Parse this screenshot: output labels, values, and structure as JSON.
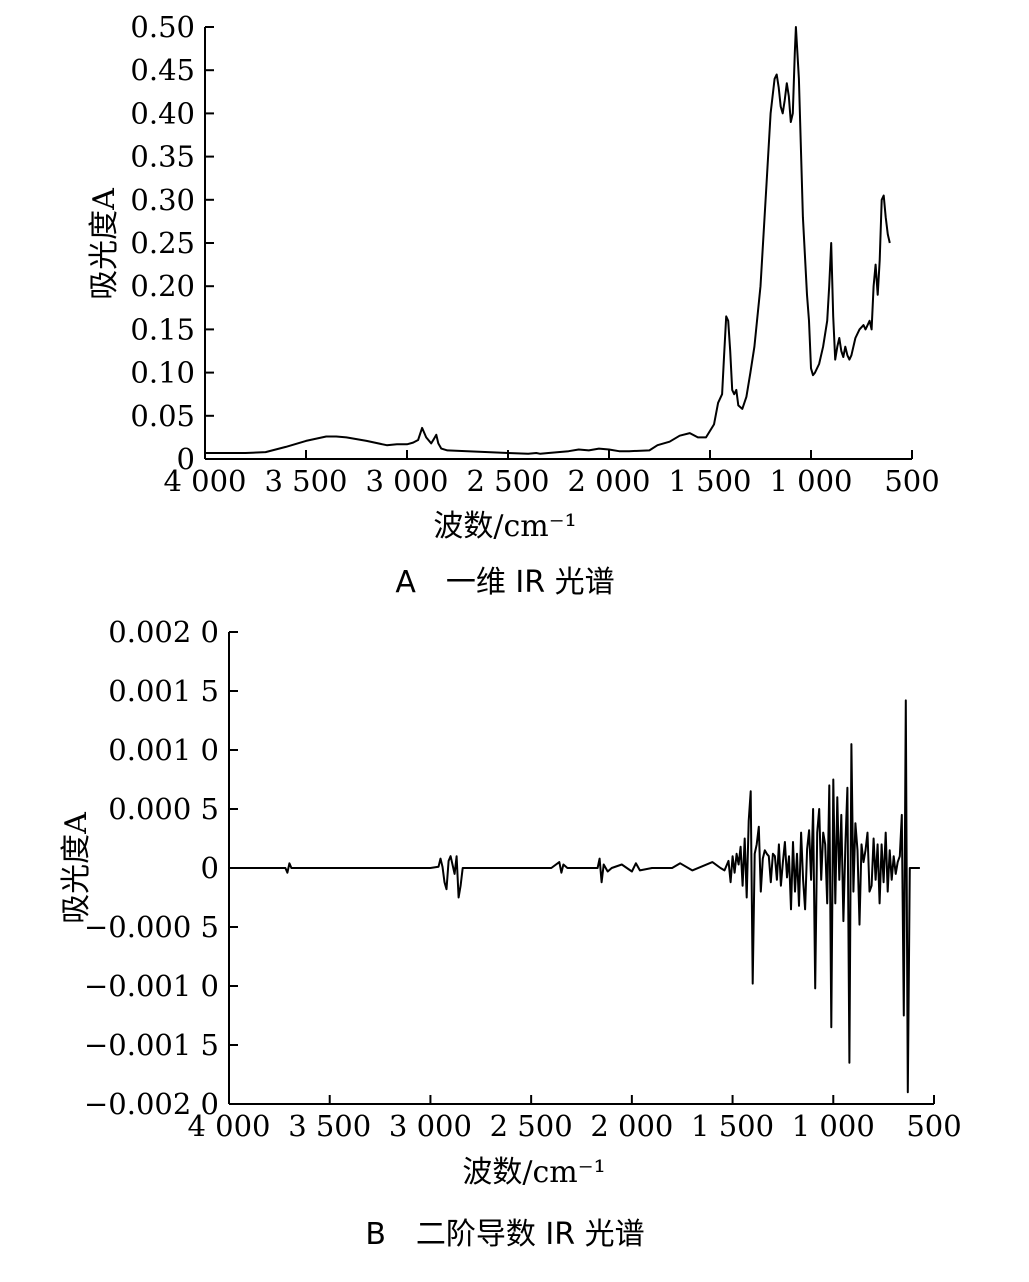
{
  "chart_data": [
    {
      "type": "line",
      "caption": "A　一维 IR 光谱",
      "xlabel": "波数/cm⁻¹",
      "ylabel": "吸光度A",
      "xlim": [
        4000,
        500
      ],
      "ylim": [
        0,
        0.5
      ],
      "xticks": [
        4000,
        3500,
        3000,
        2500,
        2000,
        1500,
        1000,
        500
      ],
      "xtick_labels": [
        "4 000",
        "3 500",
        "3 000",
        "2 500",
        "2 000",
        "1 500",
        "1 000",
        "500"
      ],
      "yticks": [
        0,
        0.05,
        0.1,
        0.15,
        0.2,
        0.25,
        0.3,
        0.35,
        0.4,
        0.45,
        0.5
      ],
      "ytick_labels": [
        "0",
        "0.05",
        "0.10",
        "0.15",
        "0.20",
        "0.25",
        "0.30",
        "0.35",
        "0.40",
        "0.45",
        "0.50"
      ],
      "series": [
        {
          "x": [
            4000,
            3900,
            3800,
            3700,
            3600,
            3500,
            3400,
            3350,
            3300,
            3200,
            3100,
            3050,
            3000,
            2970,
            2945,
            2925,
            2905,
            2880,
            2865,
            2855,
            2845,
            2830,
            2800,
            2700,
            2600,
            2500,
            2400,
            2360,
            2340,
            2300,
            2200,
            2150,
            2100,
            2050,
            2000,
            1950,
            1900,
            1800,
            1760,
            1700,
            1650,
            1600,
            1560,
            1520,
            1480,
            1460,
            1440,
            1430,
            1420,
            1410,
            1400,
            1390,
            1380,
            1370,
            1360,
            1340,
            1320,
            1300,
            1280,
            1250,
            1220,
            1200,
            1180,
            1170,
            1160,
            1150,
            1140,
            1130,
            1120,
            1110,
            1100,
            1090,
            1080,
            1075,
            1060,
            1040,
            1020,
            1010,
            1000,
            990,
            980,
            960,
            940,
            920,
            910,
            900,
            890,
            880,
            870,
            860,
            850,
            840,
            830,
            820,
            810,
            800,
            780,
            760,
            740,
            730,
            720,
            710,
            700,
            690,
            680,
            670,
            660,
            650,
            640,
            630,
            620,
            610
          ],
          "y": [
            0.007,
            0.007,
            0.007,
            0.008,
            0.014,
            0.021,
            0.026,
            0.026,
            0.025,
            0.021,
            0.016,
            0.017,
            0.017,
            0.019,
            0.022,
            0.036,
            0.025,
            0.018,
            0.024,
            0.028,
            0.018,
            0.012,
            0.01,
            0.009,
            0.008,
            0.007,
            0.006,
            0.007,
            0.006,
            0.007,
            0.009,
            0.011,
            0.01,
            0.012,
            0.011,
            0.009,
            0.009,
            0.01,
            0.016,
            0.02,
            0.027,
            0.03,
            0.025,
            0.025,
            0.04,
            0.065,
            0.075,
            0.12,
            0.165,
            0.16,
            0.125,
            0.08,
            0.075,
            0.08,
            0.062,
            0.058,
            0.072,
            0.1,
            0.13,
            0.2,
            0.32,
            0.4,
            0.44,
            0.445,
            0.43,
            0.408,
            0.4,
            0.415,
            0.435,
            0.42,
            0.39,
            0.4,
            0.47,
            0.5,
            0.44,
            0.28,
            0.19,
            0.16,
            0.105,
            0.097,
            0.1,
            0.11,
            0.13,
            0.16,
            0.2,
            0.25,
            0.165,
            0.115,
            0.13,
            0.14,
            0.125,
            0.118,
            0.13,
            0.12,
            0.115,
            0.12,
            0.14,
            0.15,
            0.155,
            0.15,
            0.155,
            0.16,
            0.15,
            0.2,
            0.225,
            0.19,
            0.23,
            0.3,
            0.305,
            0.28,
            0.26,
            0.25
          ]
        }
      ]
    },
    {
      "type": "line",
      "caption": "B　二阶导数 IR 光谱",
      "xlabel": "波数/cm⁻¹",
      "ylabel": "吸光度A",
      "xlim": [
        4000,
        500
      ],
      "ylim": [
        -0.002,
        0.002
      ],
      "xticks": [
        4000,
        3500,
        3000,
        2500,
        2000,
        1500,
        1000,
        500
      ],
      "xtick_labels": [
        "4 000",
        "3 500",
        "3 000",
        "2 500",
        "2 000",
        "1 500",
        "1 000",
        "500"
      ],
      "yticks": [
        0.002,
        0.0015,
        0.001,
        0.0005,
        0,
        -0.0005,
        -0.001,
        -0.0015,
        -0.002
      ],
      "ytick_labels": [
        "0.002 0",
        "0.001 5",
        "0.001 0",
        "0.000 5",
        "0",
        "−0.000 5",
        "−0.001 0",
        "−0.001 5",
        "−0.002 0"
      ],
      "series": [
        {
          "x": [
            4000,
            3900,
            3800,
            3720,
            3710,
            3700,
            3690,
            3600,
            3400,
            3200,
            3000,
            2960,
            2950,
            2940,
            2930,
            2920,
            2910,
            2900,
            2880,
            2870,
            2860,
            2850,
            2840,
            2800,
            2600,
            2400,
            2360,
            2350,
            2340,
            2320,
            2200,
            2170,
            2160,
            2150,
            2140,
            2120,
            2100,
            2050,
            2000,
            1980,
            1960,
            1900,
            1800,
            1760,
            1700,
            1600,
            1560,
            1540,
            1520,
            1510,
            1500,
            1490,
            1480,
            1470,
            1460,
            1450,
            1440,
            1430,
            1420,
            1410,
            1400,
            1390,
            1380,
            1370,
            1360,
            1350,
            1340,
            1330,
            1320,
            1310,
            1300,
            1290,
            1280,
            1270,
            1260,
            1250,
            1240,
            1230,
            1220,
            1210,
            1200,
            1190,
            1180,
            1170,
            1160,
            1150,
            1140,
            1130,
            1120,
            1110,
            1100,
            1090,
            1080,
            1070,
            1060,
            1050,
            1040,
            1030,
            1020,
            1010,
            1000,
            990,
            980,
            970,
            960,
            950,
            940,
            930,
            920,
            910,
            900,
            890,
            880,
            870,
            860,
            850,
            840,
            830,
            820,
            810,
            800,
            790,
            780,
            770,
            760,
            750,
            740,
            730,
            720,
            710,
            700,
            690,
            680,
            670,
            660,
            650,
            640,
            630,
            620,
            610,
            600,
            590,
            580,
            570
          ],
          "y": [
            0,
            0,
            0,
            0,
            -4e-05,
            4e-05,
            0,
            0,
            0,
            0,
            0,
            1e-05,
            8e-05,
            1e-05,
            -0.00012,
            -0.00018,
            6e-05,
            0.0001,
            -5e-05,
            0.0001,
            -0.00025,
            -0.00015,
            0,
            0,
            0,
            0,
            5e-05,
            -4e-05,
            3e-05,
            0,
            0,
            0,
            8e-05,
            -0.00012,
            3e-05,
            -3e-05,
            0,
            3e-05,
            -3e-05,
            4e-05,
            -2e-05,
            0,
            0,
            4e-05,
            -2e-05,
            5e-05,
            0,
            -2e-05,
            6e-05,
            -0.00012,
            0.0001,
            -4e-05,
            0.00012,
            3e-05,
            0.00018,
            -0.00015,
            0.00025,
            -0.00025,
            0.0004,
            0.00065,
            -0.00098,
            0.00012,
            0.0002,
            0.00035,
            -0.0002,
            8e-05,
            0.00015,
            0.00012,
            0.0001,
            -0.00012,
            0.00012,
            0.0001,
            -0.0001,
            0.0002,
            -0.00015,
            5e-05,
            0.00022,
            -8e-05,
            0.0001,
            -0.00035,
            0.00022,
            -0.0002,
            0.00012,
            -0.00032,
            0.0003,
            -0.0001,
            -0.00035,
            0.00016,
            0.00032,
            -0.0001,
            0.0005,
            -0.00102,
            0.0003,
            0.0005,
            -0.0001,
            0.0003,
            0.0002,
            -0.0003,
            0.0007,
            -0.00135,
            0.00075,
            -0.0003,
            0.0006,
            -0.0001,
            0.00045,
            -0.00045,
            0.0002,
            0.00068,
            -0.00165,
            0.00105,
            -0.0002,
            0.00038,
            0.00015,
            -0.00048,
            0.0002,
            5e-05,
            0.00015,
            0.0003,
            -0.0002,
            -0.00015,
            0.00025,
            -0.0001,
            0.0002,
            -0.0003,
            0.0002,
            -0.00012,
            0.0003,
            -0.0002,
            0.00015,
            -0.0001,
            0.0001,
            -5e-05,
            5e-05,
            0.0001,
            0.00045,
            -0.00125,
            0.00142,
            -0.0019,
            0,
            0,
            0,
            0,
            0,
            0
          ]
        }
      ]
    }
  ]
}
